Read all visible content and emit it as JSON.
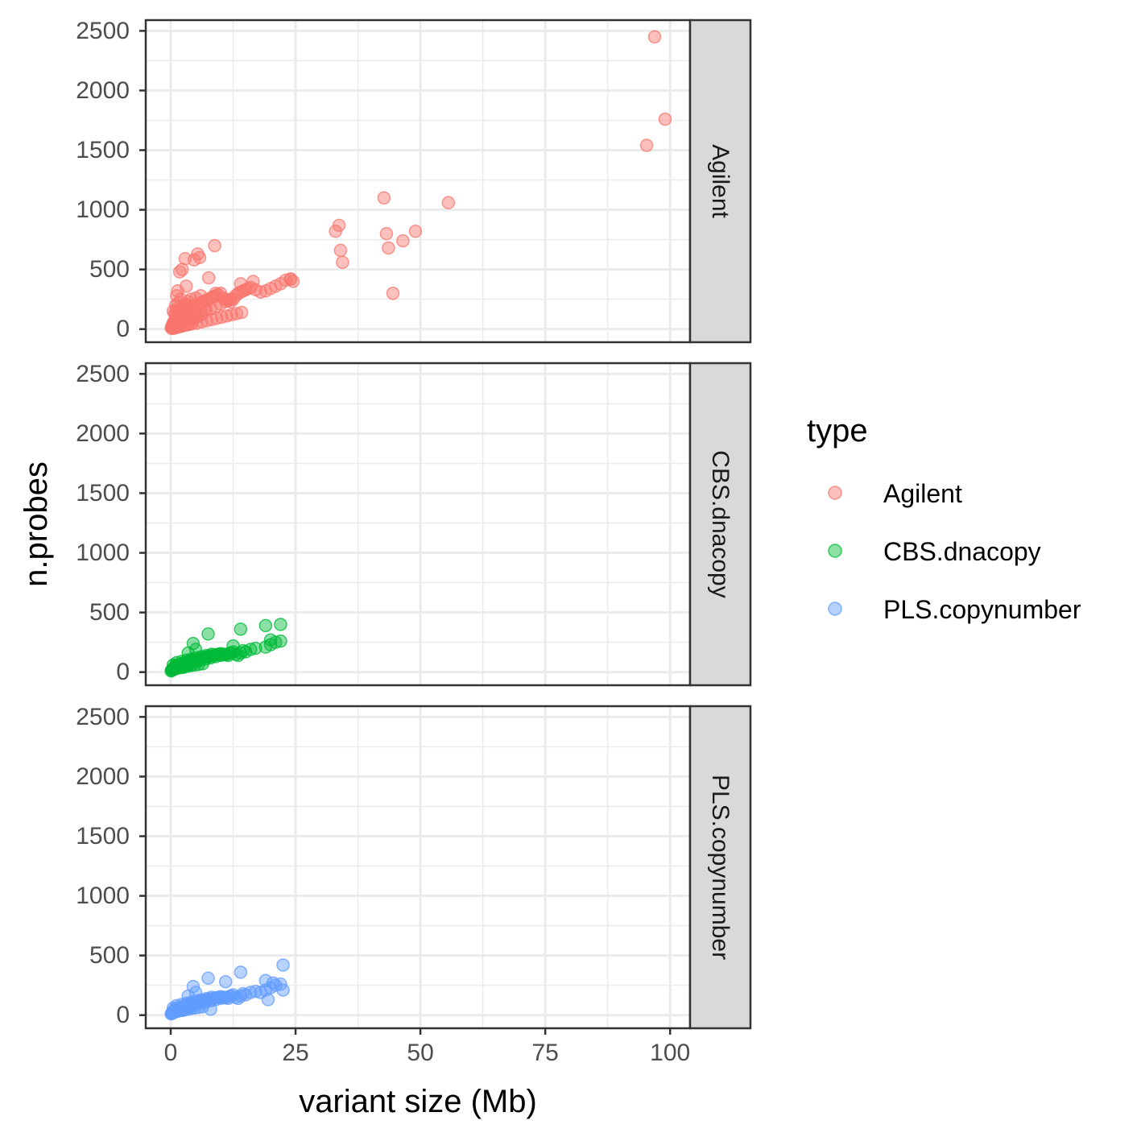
{
  "chart_data": {
    "type": "scatter",
    "xlabel": "variant size (Mb)",
    "ylabel": "n.probes",
    "xlim": [
      -5,
      104
    ],
    "ylim": [
      -110,
      2590
    ],
    "x_ticks": [
      0,
      25,
      50,
      75,
      100
    ],
    "x_tick_labels": [
      "0",
      "25",
      "50",
      "75",
      "100"
    ],
    "y_ticks": [
      0,
      500,
      1000,
      1500,
      2000,
      2500
    ],
    "y_tick_labels": [
      "0",
      "500",
      "1000",
      "1500",
      "2000",
      "2500"
    ],
    "grid": true,
    "legend": {
      "title": "type",
      "position": "right",
      "entries": [
        {
          "label": "Agilent",
          "color": "#F8766D"
        },
        {
          "label": "CBS.dnacopy",
          "color": "#00BA38"
        },
        {
          "label": "PLS.copynumber",
          "color": "#619CFF"
        }
      ]
    },
    "facets": [
      {
        "strip": "Agilent",
        "color": "#F8766D",
        "x": [
          0.1,
          0.2,
          0.3,
          0.4,
          0.5,
          0.6,
          0.8,
          1.0,
          1.2,
          1.5,
          1.8,
          2.0,
          2.3,
          2.6,
          3.0,
          3.3,
          3.6,
          4.0,
          4.5,
          5.0,
          5.5,
          6.0,
          6.5,
          7.0,
          7.5,
          8.0,
          8.5,
          9.0,
          9.5,
          10.0,
          10.5,
          11.0,
          11.5,
          12.0,
          12.5,
          13.0,
          13.5,
          14.0,
          14.5,
          15.0,
          15.5,
          16.0,
          17.0,
          18.0,
          19.0,
          20.0,
          21.0,
          22.0,
          23.0,
          24.0,
          24.5,
          0.5,
          0.8,
          1.0,
          1.2,
          1.5,
          2.0,
          2.5,
          3.0,
          3.5,
          4.0,
          4.5,
          5.0,
          5.5,
          6.0,
          7.0,
          8.0,
          9.0,
          10.0,
          11.0,
          12.0,
          1.0,
          1.5,
          2.0,
          2.0,
          2.5,
          3.0,
          3.5,
          4.0,
          5.0,
          6.0,
          1.5,
          2.5,
          3.0,
          4.0,
          5.0,
          6.0,
          7.0,
          1.0,
          2.0,
          3.0,
          4.0,
          0.3,
          0.6,
          0.9,
          1.3,
          1.7,
          2.2,
          2.7,
          3.2,
          3.8,
          4.3,
          5.2,
          6.2,
          7.2,
          8.2,
          9.2,
          10.2,
          11.2,
          12.2,
          13.2,
          14.2,
          1.2,
          1.4,
          1.8,
          2.3,
          2.9,
          4.7,
          5.8,
          7.6,
          9.0,
          8.8,
          5.4,
          1.1,
          3.1,
          14.0,
          16.5,
          24.0,
          33.0,
          33.7,
          34.4,
          34.0,
          42.7,
          43.2,
          43.6,
          44.5,
          46.5,
          49.0,
          55.6,
          95.3,
          96.9,
          99.0
        ],
        "y": [
          10,
          20,
          30,
          40,
          50,
          60,
          70,
          80,
          90,
          100,
          110,
          120,
          130,
          140,
          150,
          160,
          170,
          180,
          190,
          200,
          210,
          220,
          230,
          240,
          250,
          260,
          270,
          280,
          290,
          300,
          260,
          250,
          240,
          230,
          250,
          280,
          300,
          310,
          320,
          330,
          340,
          350,
          330,
          310,
          320,
          340,
          360,
          380,
          410,
          420,
          400,
          150,
          130,
          110,
          100,
          90,
          80,
          70,
          60,
          70,
          80,
          90,
          100,
          110,
          120,
          150,
          170,
          190,
          210,
          230,
          250,
          200,
          220,
          250,
          170,
          190,
          210,
          230,
          250,
          260,
          280,
          160,
          180,
          200,
          120,
          140,
          160,
          180,
          40,
          50,
          60,
          70,
          5,
          8,
          12,
          15,
          20,
          25,
          30,
          35,
          40,
          45,
          50,
          60,
          70,
          80,
          90,
          100,
          110,
          120,
          130,
          140,
          280,
          320,
          480,
          500,
          590,
          580,
          600,
          430,
          300,
          700,
          630,
          160,
          360,
          380,
          400,
          420,
          820,
          870,
          560,
          660,
          1100,
          800,
          680,
          300,
          740,
          820,
          1060,
          1540,
          2450,
          1760
        ]
      },
      {
        "strip": "CBS.dnacopy",
        "color": "#00BA38",
        "x": [
          0.1,
          0.2,
          0.3,
          0.4,
          0.5,
          0.6,
          0.8,
          1.0,
          1.2,
          1.5,
          1.8,
          2.0,
          2.3,
          2.6,
          3.0,
          3.3,
          3.6,
          4.0,
          4.5,
          5.0,
          5.5,
          6.0,
          6.5,
          7.0,
          7.5,
          8.0,
          8.5,
          9.0,
          9.5,
          10.0,
          10.5,
          11.0,
          11.5,
          12.0,
          12.5,
          13.0,
          13.5,
          14.0,
          14.5,
          15.0,
          16.0,
          17.0,
          19.0,
          20.0,
          21.0,
          22.0,
          0.5,
          1.0,
          1.5,
          2.0,
          2.5,
          3.0,
          3.5,
          4.0,
          4.5,
          5.0,
          6.0,
          7.0,
          8.0,
          9.0,
          10.0,
          11.0,
          12.0,
          1.2,
          2.2,
          3.2,
          4.2,
          5.2,
          6.2,
          7.2,
          8.2,
          0.3,
          0.7,
          1.1,
          1.6,
          2.1,
          2.7,
          3.4,
          4.1,
          4.8,
          5.6,
          6.4,
          3.5,
          4.5,
          5.0,
          7.5,
          12.5,
          14.0,
          19.0,
          20.0,
          22.0
        ],
        "y": [
          10,
          15,
          20,
          25,
          30,
          35,
          40,
          45,
          50,
          55,
          60,
          65,
          70,
          75,
          80,
          85,
          90,
          95,
          100,
          105,
          110,
          115,
          120,
          125,
          130,
          135,
          140,
          145,
          150,
          155,
          150,
          145,
          140,
          160,
          170,
          150,
          140,
          160,
          180,
          170,
          190,
          200,
          210,
          230,
          250,
          260,
          60,
          55,
          50,
          45,
          40,
          50,
          60,
          70,
          80,
          90,
          100,
          110,
          120,
          130,
          140,
          150,
          160,
          80,
          90,
          100,
          110,
          120,
          130,
          140,
          150,
          20,
          25,
          30,
          35,
          40,
          45,
          50,
          55,
          60,
          65,
          70,
          160,
          240,
          190,
          320,
          220,
          360,
          390,
          270,
          400
        ]
      },
      {
        "strip": "PLS.copynumber",
        "color": "#619CFF",
        "x": [
          0.1,
          0.2,
          0.3,
          0.4,
          0.5,
          0.6,
          0.8,
          1.0,
          1.2,
          1.5,
          1.8,
          2.0,
          2.3,
          2.6,
          3.0,
          3.3,
          3.6,
          4.0,
          4.5,
          5.0,
          5.5,
          6.0,
          6.5,
          7.0,
          7.5,
          8.0,
          8.5,
          9.0,
          9.5,
          10.0,
          10.5,
          11.0,
          11.5,
          12.0,
          12.5,
          13.0,
          13.5,
          14.0,
          14.5,
          15.0,
          16.0,
          17.0,
          18.0,
          19.0,
          20.0,
          21.0,
          22.0,
          22.5,
          0.5,
          1.0,
          1.5,
          2.0,
          2.5,
          3.0,
          3.5,
          4.0,
          4.5,
          5.0,
          6.0,
          7.0,
          8.0,
          9.0,
          10.0,
          11.0,
          12.0,
          1.2,
          2.2,
          3.2,
          4.2,
          5.2,
          6.2,
          7.2,
          8.2,
          0.3,
          0.7,
          1.1,
          1.6,
          2.1,
          2.7,
          3.4,
          4.1,
          4.8,
          5.6,
          6.4,
          3.5,
          4.5,
          5.0,
          7.5,
          11.0,
          14.0,
          19.0,
          20.5,
          22.5,
          8.0,
          19.5
        ],
        "y": [
          10,
          15,
          20,
          25,
          30,
          35,
          40,
          45,
          50,
          55,
          60,
          65,
          70,
          75,
          80,
          85,
          90,
          95,
          100,
          105,
          110,
          115,
          120,
          125,
          130,
          135,
          140,
          145,
          150,
          155,
          150,
          145,
          140,
          160,
          170,
          150,
          140,
          160,
          180,
          170,
          190,
          200,
          190,
          210,
          230,
          250,
          260,
          210,
          60,
          55,
          50,
          45,
          40,
          50,
          60,
          70,
          80,
          90,
          100,
          110,
          120,
          130,
          140,
          150,
          160,
          80,
          90,
          100,
          110,
          120,
          130,
          140,
          150,
          20,
          25,
          30,
          35,
          40,
          45,
          50,
          55,
          60,
          65,
          70,
          160,
          240,
          190,
          310,
          280,
          360,
          290,
          270,
          420,
          50,
          130
        ]
      }
    ]
  }
}
